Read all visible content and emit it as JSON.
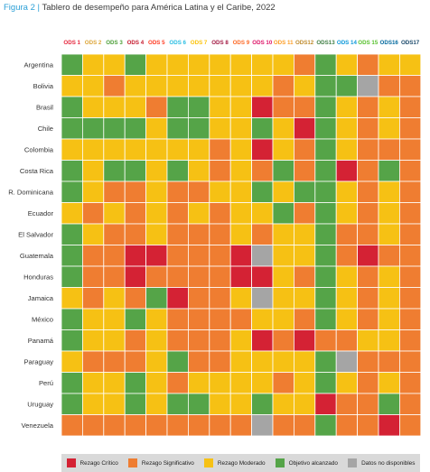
{
  "figure": {
    "label": "Figura 2 |",
    "title": "Tablero de desempeño para América Latina y el Caribe, 2022"
  },
  "chart_data": {
    "type": "heatmap",
    "columns": [
      "ODS 1",
      "ODS 2",
      "ODS 3",
      "ODS 4",
      "ODS 5",
      "ODS 6",
      "ODS 7",
      "ODS 8",
      "ODS 9",
      "ODS 10",
      "ODS 11",
      "ODS12",
      "ODS13",
      "ODS 14",
      "ODS 15",
      "ODS16",
      "ODS17"
    ],
    "column_colors": [
      "#e5243b",
      "#dda63a",
      "#4c9f38",
      "#c5192d",
      "#ff3a21",
      "#26bde2",
      "#fcc30b",
      "#a21942",
      "#fd6925",
      "#dd1367",
      "#fd9d24",
      "#bf8b2e",
      "#3f7e44",
      "#0a97d9",
      "#56c02b",
      "#00689d",
      "#19486a"
    ],
    "rows": [
      "Argentina",
      "Bolivia",
      "Brasil",
      "Chile",
      "Colombia",
      "Costa Rica",
      "R. Dominicana",
      "Ecuador",
      "El Salvador",
      "Guatemala",
      "Honduras",
      "Jamaica",
      "México",
      "Panamá",
      "Paraguay",
      "Perú",
      "Uruguay",
      "Venezuela"
    ],
    "values": [
      "GYYGYYYYYYYOGYOYY",
      "YYOYYYYYYYOYGGNOO",
      "GYYYOGGYYROOGYOYO",
      "GGGGYGGYYGYRGYOYO",
      "YYYYYYYOYRYOGYOOO",
      "GYGGYGYOYOGOGROGO",
      "GYOOYOOYYGYGGYOYO",
      "YOYOYOYOYYGOGYOYO",
      "GYOOYOOOYOYYGOOYO",
      "GOORROOORNYYGOROO",
      "GOOROOOORRYOGYOYO",
      "YOYOGROOYNYYGYOYO",
      "GYYGYOOOOYYOGYOYO",
      "GYYOYOOOYROROOYYO",
      "YOOOYGOOYYYYGNOOO",
      "GYYGYOYYYYOYGYOYO",
      "GYYGYGGYYGYYROOGO",
      "OOOOOOOOONOOGOORO"
    ],
    "legend": [
      {
        "code": "R",
        "label": "Rezago Crítico",
        "color": "#d42234"
      },
      {
        "code": "O",
        "label": "Rezago Significativo",
        "color": "#ef7d31"
      },
      {
        "code": "Y",
        "label": "Rezago Moderado",
        "color": "#f6c114"
      },
      {
        "code": "G",
        "label": "Objetivo alcanzado",
        "color": "#55a448"
      },
      {
        "code": "N",
        "label": "Datos no disponibles",
        "color": "#a5a5a5"
      }
    ],
    "legend_position": "bottom"
  }
}
